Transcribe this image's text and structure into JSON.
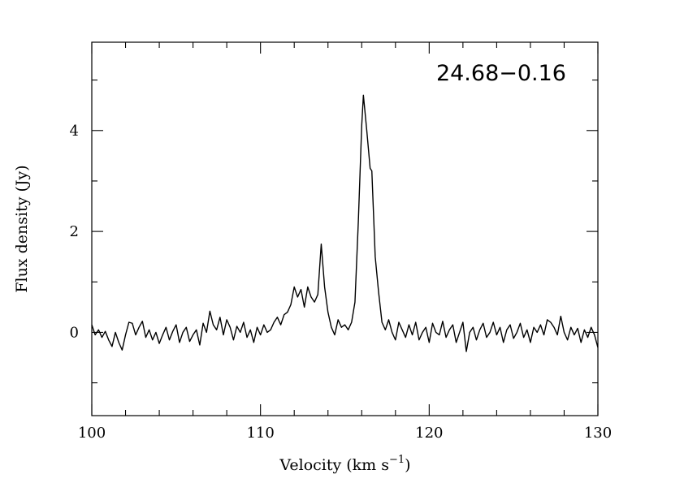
{
  "chart_data": {
    "type": "line",
    "annotation": "24.68−0.16",
    "xlabel": "Velocity (km s",
    "xlabel_exp": "−1",
    "xlabel_close": ")",
    "ylabel": "Flux density (Jy)",
    "xlim": [
      100,
      130
    ],
    "ylim": [
      -1.65,
      5.75
    ],
    "x_major_ticks": [
      100,
      110,
      120,
      130
    ],
    "x_tick_labels": [
      "100",
      "110",
      "120",
      "130"
    ],
    "x_minor_step": 2,
    "y_major_ticks": [
      0,
      2,
      4
    ],
    "y_tick_labels": [
      "0",
      "2",
      "4"
    ],
    "y_minor_step": 1,
    "grid": false,
    "legend": "none",
    "line_color": "#000000",
    "series": [
      {
        "points": [
          [
            100.0,
            0.15
          ],
          [
            100.2,
            -0.05
          ],
          [
            100.4,
            0.05
          ],
          [
            100.6,
            -0.1
          ],
          [
            100.8,
            0.02
          ],
          [
            101.0,
            -0.15
          ],
          [
            101.2,
            -0.28
          ],
          [
            101.4,
            0.0
          ],
          [
            101.6,
            -0.2
          ],
          [
            101.8,
            -0.35
          ],
          [
            102.0,
            -0.05
          ],
          [
            102.2,
            0.2
          ],
          [
            102.4,
            0.18
          ],
          [
            102.6,
            -0.05
          ],
          [
            102.8,
            0.1
          ],
          [
            103.0,
            0.22
          ],
          [
            103.2,
            -0.1
          ],
          [
            103.4,
            0.05
          ],
          [
            103.6,
            -0.15
          ],
          [
            103.8,
            0.0
          ],
          [
            104.0,
            -0.22
          ],
          [
            104.2,
            -0.05
          ],
          [
            104.4,
            0.1
          ],
          [
            104.6,
            -0.15
          ],
          [
            104.8,
            0.02
          ],
          [
            105.0,
            0.15
          ],
          [
            105.2,
            -0.2
          ],
          [
            105.4,
            0.0
          ],
          [
            105.6,
            0.1
          ],
          [
            105.8,
            -0.18
          ],
          [
            106.0,
            -0.05
          ],
          [
            106.2,
            0.05
          ],
          [
            106.4,
            -0.25
          ],
          [
            106.6,
            0.18
          ],
          [
            106.8,
            0.0
          ],
          [
            107.0,
            0.42
          ],
          [
            107.2,
            0.15
          ],
          [
            107.4,
            0.05
          ],
          [
            107.6,
            0.3
          ],
          [
            107.8,
            -0.05
          ],
          [
            108.0,
            0.25
          ],
          [
            108.2,
            0.1
          ],
          [
            108.4,
            -0.15
          ],
          [
            108.6,
            0.12
          ],
          [
            108.8,
            0.0
          ],
          [
            109.0,
            0.2
          ],
          [
            109.2,
            -0.1
          ],
          [
            109.4,
            0.05
          ],
          [
            109.6,
            -0.2
          ],
          [
            109.8,
            0.1
          ],
          [
            110.0,
            -0.05
          ],
          [
            110.2,
            0.15
          ],
          [
            110.4,
            0.0
          ],
          [
            110.6,
            0.05
          ],
          [
            110.8,
            0.2
          ],
          [
            111.0,
            0.3
          ],
          [
            111.2,
            0.15
          ],
          [
            111.4,
            0.35
          ],
          [
            111.6,
            0.4
          ],
          [
            111.8,
            0.55
          ],
          [
            112.0,
            0.9
          ],
          [
            112.2,
            0.7
          ],
          [
            112.4,
            0.85
          ],
          [
            112.6,
            0.5
          ],
          [
            112.8,
            0.9
          ],
          [
            113.0,
            0.7
          ],
          [
            113.2,
            0.6
          ],
          [
            113.4,
            0.75
          ],
          [
            113.6,
            1.75
          ],
          [
            113.8,
            0.9
          ],
          [
            114.0,
            0.4
          ],
          [
            114.2,
            0.1
          ],
          [
            114.4,
            -0.05
          ],
          [
            114.6,
            0.25
          ],
          [
            114.8,
            0.1
          ],
          [
            115.0,
            0.15
          ],
          [
            115.2,
            0.05
          ],
          [
            115.4,
            0.2
          ],
          [
            115.6,
            0.6
          ],
          [
            115.8,
            2.2
          ],
          [
            116.0,
            4.1
          ],
          [
            116.1,
            4.7
          ],
          [
            116.3,
            4.0
          ],
          [
            116.5,
            3.25
          ],
          [
            116.6,
            3.2
          ],
          [
            116.8,
            1.5
          ],
          [
            117.0,
            0.8
          ],
          [
            117.2,
            0.2
          ],
          [
            117.4,
            0.05
          ],
          [
            117.6,
            0.25
          ],
          [
            117.8,
            0.0
          ],
          [
            118.0,
            -0.15
          ],
          [
            118.2,
            0.2
          ],
          [
            118.4,
            0.05
          ],
          [
            118.6,
            -0.1
          ],
          [
            118.8,
            0.15
          ],
          [
            119.0,
            -0.05
          ],
          [
            119.2,
            0.2
          ],
          [
            119.4,
            -0.15
          ],
          [
            119.6,
            0.0
          ],
          [
            119.8,
            0.1
          ],
          [
            120.0,
            -0.2
          ],
          [
            120.2,
            0.18
          ],
          [
            120.4,
            0.0
          ],
          [
            120.6,
            -0.05
          ],
          [
            120.8,
            0.22
          ],
          [
            121.0,
            -0.1
          ],
          [
            121.2,
            0.05
          ],
          [
            121.4,
            0.15
          ],
          [
            121.6,
            -0.2
          ],
          [
            121.8,
            0.0
          ],
          [
            122.0,
            0.2
          ],
          [
            122.2,
            -0.38
          ],
          [
            122.4,
            0.0
          ],
          [
            122.6,
            0.1
          ],
          [
            122.8,
            -0.15
          ],
          [
            123.0,
            0.05
          ],
          [
            123.2,
            0.18
          ],
          [
            123.4,
            -0.1
          ],
          [
            123.6,
            0.0
          ],
          [
            123.8,
            0.2
          ],
          [
            124.0,
            -0.05
          ],
          [
            124.2,
            0.1
          ],
          [
            124.4,
            -0.2
          ],
          [
            124.6,
            0.05
          ],
          [
            124.8,
            0.15
          ],
          [
            125.0,
            -0.12
          ],
          [
            125.2,
            0.0
          ],
          [
            125.4,
            0.18
          ],
          [
            125.6,
            -0.1
          ],
          [
            125.8,
            0.05
          ],
          [
            126.0,
            -0.2
          ],
          [
            126.2,
            0.1
          ],
          [
            126.4,
            0.0
          ],
          [
            126.6,
            0.15
          ],
          [
            126.8,
            -0.05
          ],
          [
            127.0,
            0.25
          ],
          [
            127.2,
            0.2
          ],
          [
            127.4,
            0.1
          ],
          [
            127.6,
            -0.05
          ],
          [
            127.8,
            0.32
          ],
          [
            128.0,
            0.0
          ],
          [
            128.2,
            -0.15
          ],
          [
            128.4,
            0.1
          ],
          [
            128.6,
            -0.05
          ],
          [
            128.8,
            0.08
          ],
          [
            129.0,
            -0.2
          ],
          [
            129.2,
            0.05
          ],
          [
            129.4,
            -0.1
          ],
          [
            129.6,
            0.1
          ],
          [
            129.8,
            -0.05
          ],
          [
            130.0,
            -0.3
          ]
        ]
      }
    ]
  }
}
